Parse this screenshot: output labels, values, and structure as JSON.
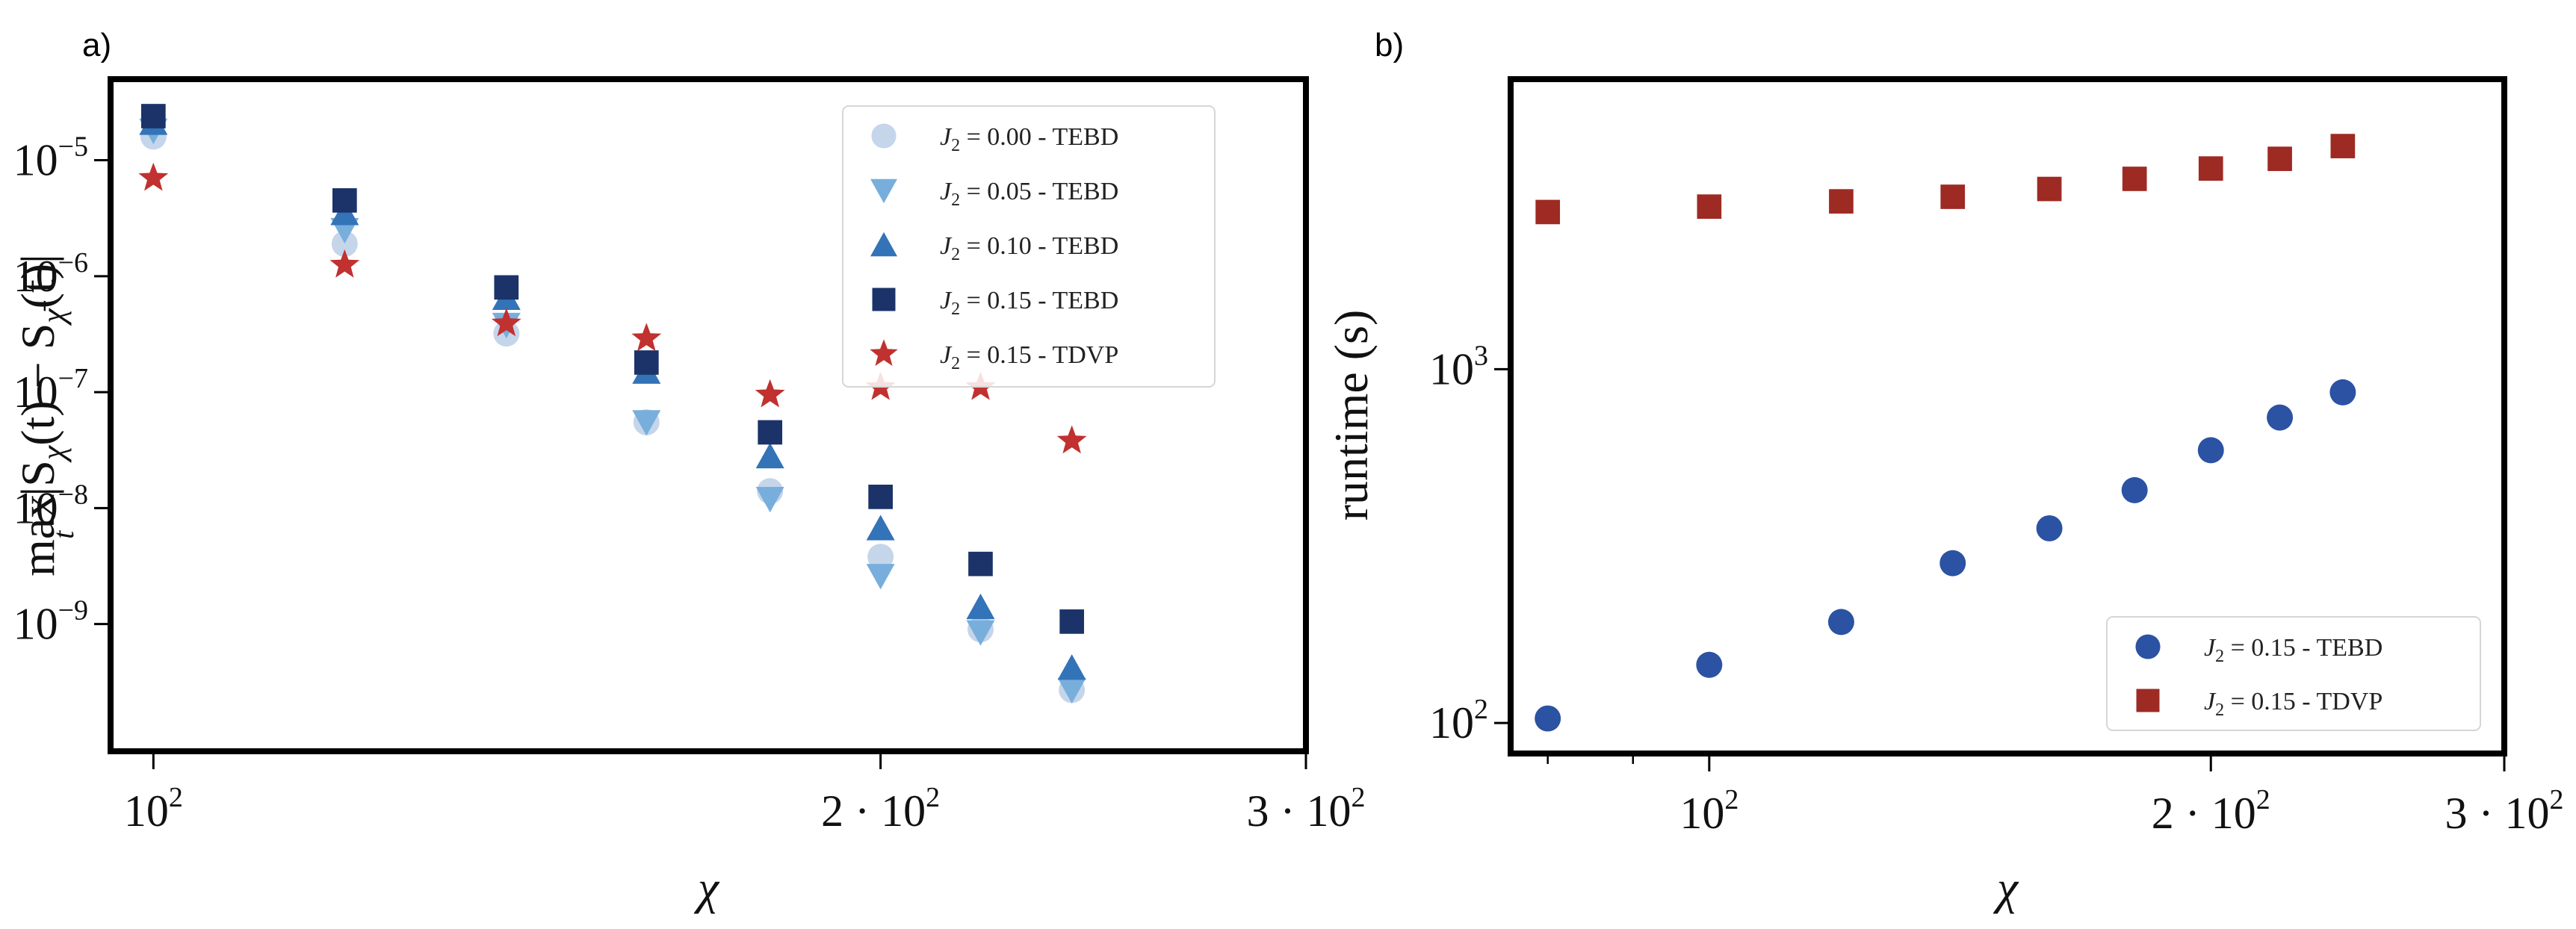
{
  "chart_data": [
    {
      "type": "scatter",
      "panel_label": "a)",
      "xscale": "log",
      "yscale": "log",
      "xlim": [
        96,
        300
      ],
      "ylim": [
        8e-11,
        5e-05
      ],
      "xlabel": "χ",
      "ylabel": "max_t |S_χ(t) − S_χ̄(t)|",
      "ylabel_parts": {
        "max": "max",
        "sub_t": "t",
        "body": "|S",
        "chi1": "χ",
        "mid": "(t) − S",
        "chi2": "χ̄",
        "end": "(t)|"
      },
      "xticks": [
        {
          "value": 100,
          "base": "10",
          "exp": "2",
          "prefix": ""
        },
        {
          "value": 200,
          "base": "10",
          "exp": "2",
          "prefix": "2 · "
        },
        {
          "value": 300,
          "base": "10",
          "exp": "2",
          "prefix": "3 · "
        }
      ],
      "yticks": [
        {
          "value": 1e-09,
          "base": "10",
          "exp": "−9"
        },
        {
          "value": 1e-08,
          "base": "10",
          "exp": "−8"
        },
        {
          "value": 1e-07,
          "base": "10",
          "exp": "−7"
        },
        {
          "value": 1e-06,
          "base": "10",
          "exp": "−6"
        },
        {
          "value": 1e-05,
          "base": "10",
          "exp": "−5"
        }
      ],
      "legend_position": "upper-right",
      "series": [
        {
          "name": "J₂ = 0.00 - TEBD",
          "legend_j": "J",
          "legend_sub": "2",
          "legend_rest": " = 0.00 - TEBD",
          "marker": "circle",
          "color": "#c5d5ea",
          "x": [
            100,
            120,
            140,
            160,
            180,
            200,
            220,
            240
          ],
          "y": [
            1.6e-05,
            1.9e-06,
            3.2e-07,
            5.5e-08,
            1.4e-08,
            3.8e-09,
            9e-10,
            2.7e-10
          ]
        },
        {
          "name": "J₂ = 0.05 - TEBD",
          "legend_j": "J",
          "legend_sub": "2",
          "legend_rest": " = 0.05 - TEBD",
          "marker": "triangle-down",
          "color": "#78aedb",
          "x": [
            100,
            120,
            140,
            160,
            180,
            200,
            220,
            240
          ],
          "y": [
            1.8e-05,
            2.5e-06,
            3.8e-07,
            5.5e-08,
            1.2e-08,
            2.6e-09,
            8.5e-10,
            2.7e-10
          ]
        },
        {
          "name": "J₂ = 0.10 - TEBD",
          "legend_j": "J",
          "legend_sub": "2",
          "legend_rest": " = 0.10 - TEBD",
          "marker": "triangle-up",
          "color": "#3373b8",
          "x": [
            100,
            120,
            140,
            160,
            180,
            200,
            220,
            240
          ],
          "y": [
            2.1e-05,
            3.5e-06,
            6.5e-07,
            1.5e-07,
            2.8e-08,
            6.7e-09,
            1.4e-09,
            4.2e-10
          ]
        },
        {
          "name": "J₂ = 0.15 - TEBD",
          "legend_j": "J",
          "legend_sub": "2",
          "legend_rest": " = 0.15 - TEBD",
          "marker": "square",
          "color": "#1b3368",
          "x": [
            100,
            120,
            140,
            160,
            180,
            200,
            220,
            240
          ],
          "y": [
            2.4e-05,
            4.5e-06,
            8e-07,
            1.8e-07,
            4.5e-08,
            1.25e-08,
            3.3e-09,
            1.05e-09
          ]
        },
        {
          "name": "J₂ = 0.15 - TDVP",
          "legend_j": "J",
          "legend_sub": "2",
          "legend_rest": " = 0.15 - TDVP",
          "marker": "star",
          "color": "#c0312f",
          "x": [
            100,
            120,
            140,
            160,
            180,
            200,
            220,
            240
          ],
          "y": [
            7e-06,
            1.25e-06,
            3.9e-07,
            2.9e-07,
            9.5e-08,
            1.1e-07,
            1.1e-07,
            3.8e-08
          ]
        }
      ]
    },
    {
      "type": "scatter",
      "panel_label": "b)",
      "xscale": "log",
      "yscale": "log",
      "xlim": [
        76,
        300
      ],
      "ylim": [
        82,
        6600
      ],
      "xlabel": "χ",
      "ylabel": "runtime (s)",
      "xticks": [
        {
          "value": 100,
          "base": "10",
          "exp": "2",
          "prefix": ""
        },
        {
          "value": 200,
          "base": "10",
          "exp": "2",
          "prefix": "2 · "
        },
        {
          "value": 300,
          "base": "10",
          "exp": "2",
          "prefix": "3 · "
        }
      ],
      "xminor": [
        80,
        90
      ],
      "yticks": [
        {
          "value": 100,
          "base": "10",
          "exp": "2"
        },
        {
          "value": 1000,
          "base": "10",
          "exp": "3"
        }
      ],
      "legend_position": "lower-right",
      "series": [
        {
          "name": "J₂ = 0.15 - TEBD",
          "legend_j": "J",
          "legend_sub": "2",
          "legend_rest": " = 0.15 - TEBD",
          "marker": "circle",
          "color": "#2b52a3",
          "x": [
            80,
            100,
            120,
            140,
            160,
            180,
            200,
            220,
            240
          ],
          "y": [
            103,
            146,
            193,
            283,
            355,
            455,
            590,
            730,
            860
          ]
        },
        {
          "name": "J₂ = 0.15 - TDVP",
          "legend_j": "J",
          "legend_sub": "2",
          "legend_rest": " = 0.15 - TDVP",
          "marker": "square",
          "color": "#9e2a24",
          "x": [
            80,
            100,
            120,
            140,
            160,
            180,
            200,
            220,
            240
          ],
          "y": [
            2780,
            2880,
            2980,
            3070,
            3230,
            3450,
            3690,
            3930,
            4270
          ]
        }
      ]
    }
  ]
}
